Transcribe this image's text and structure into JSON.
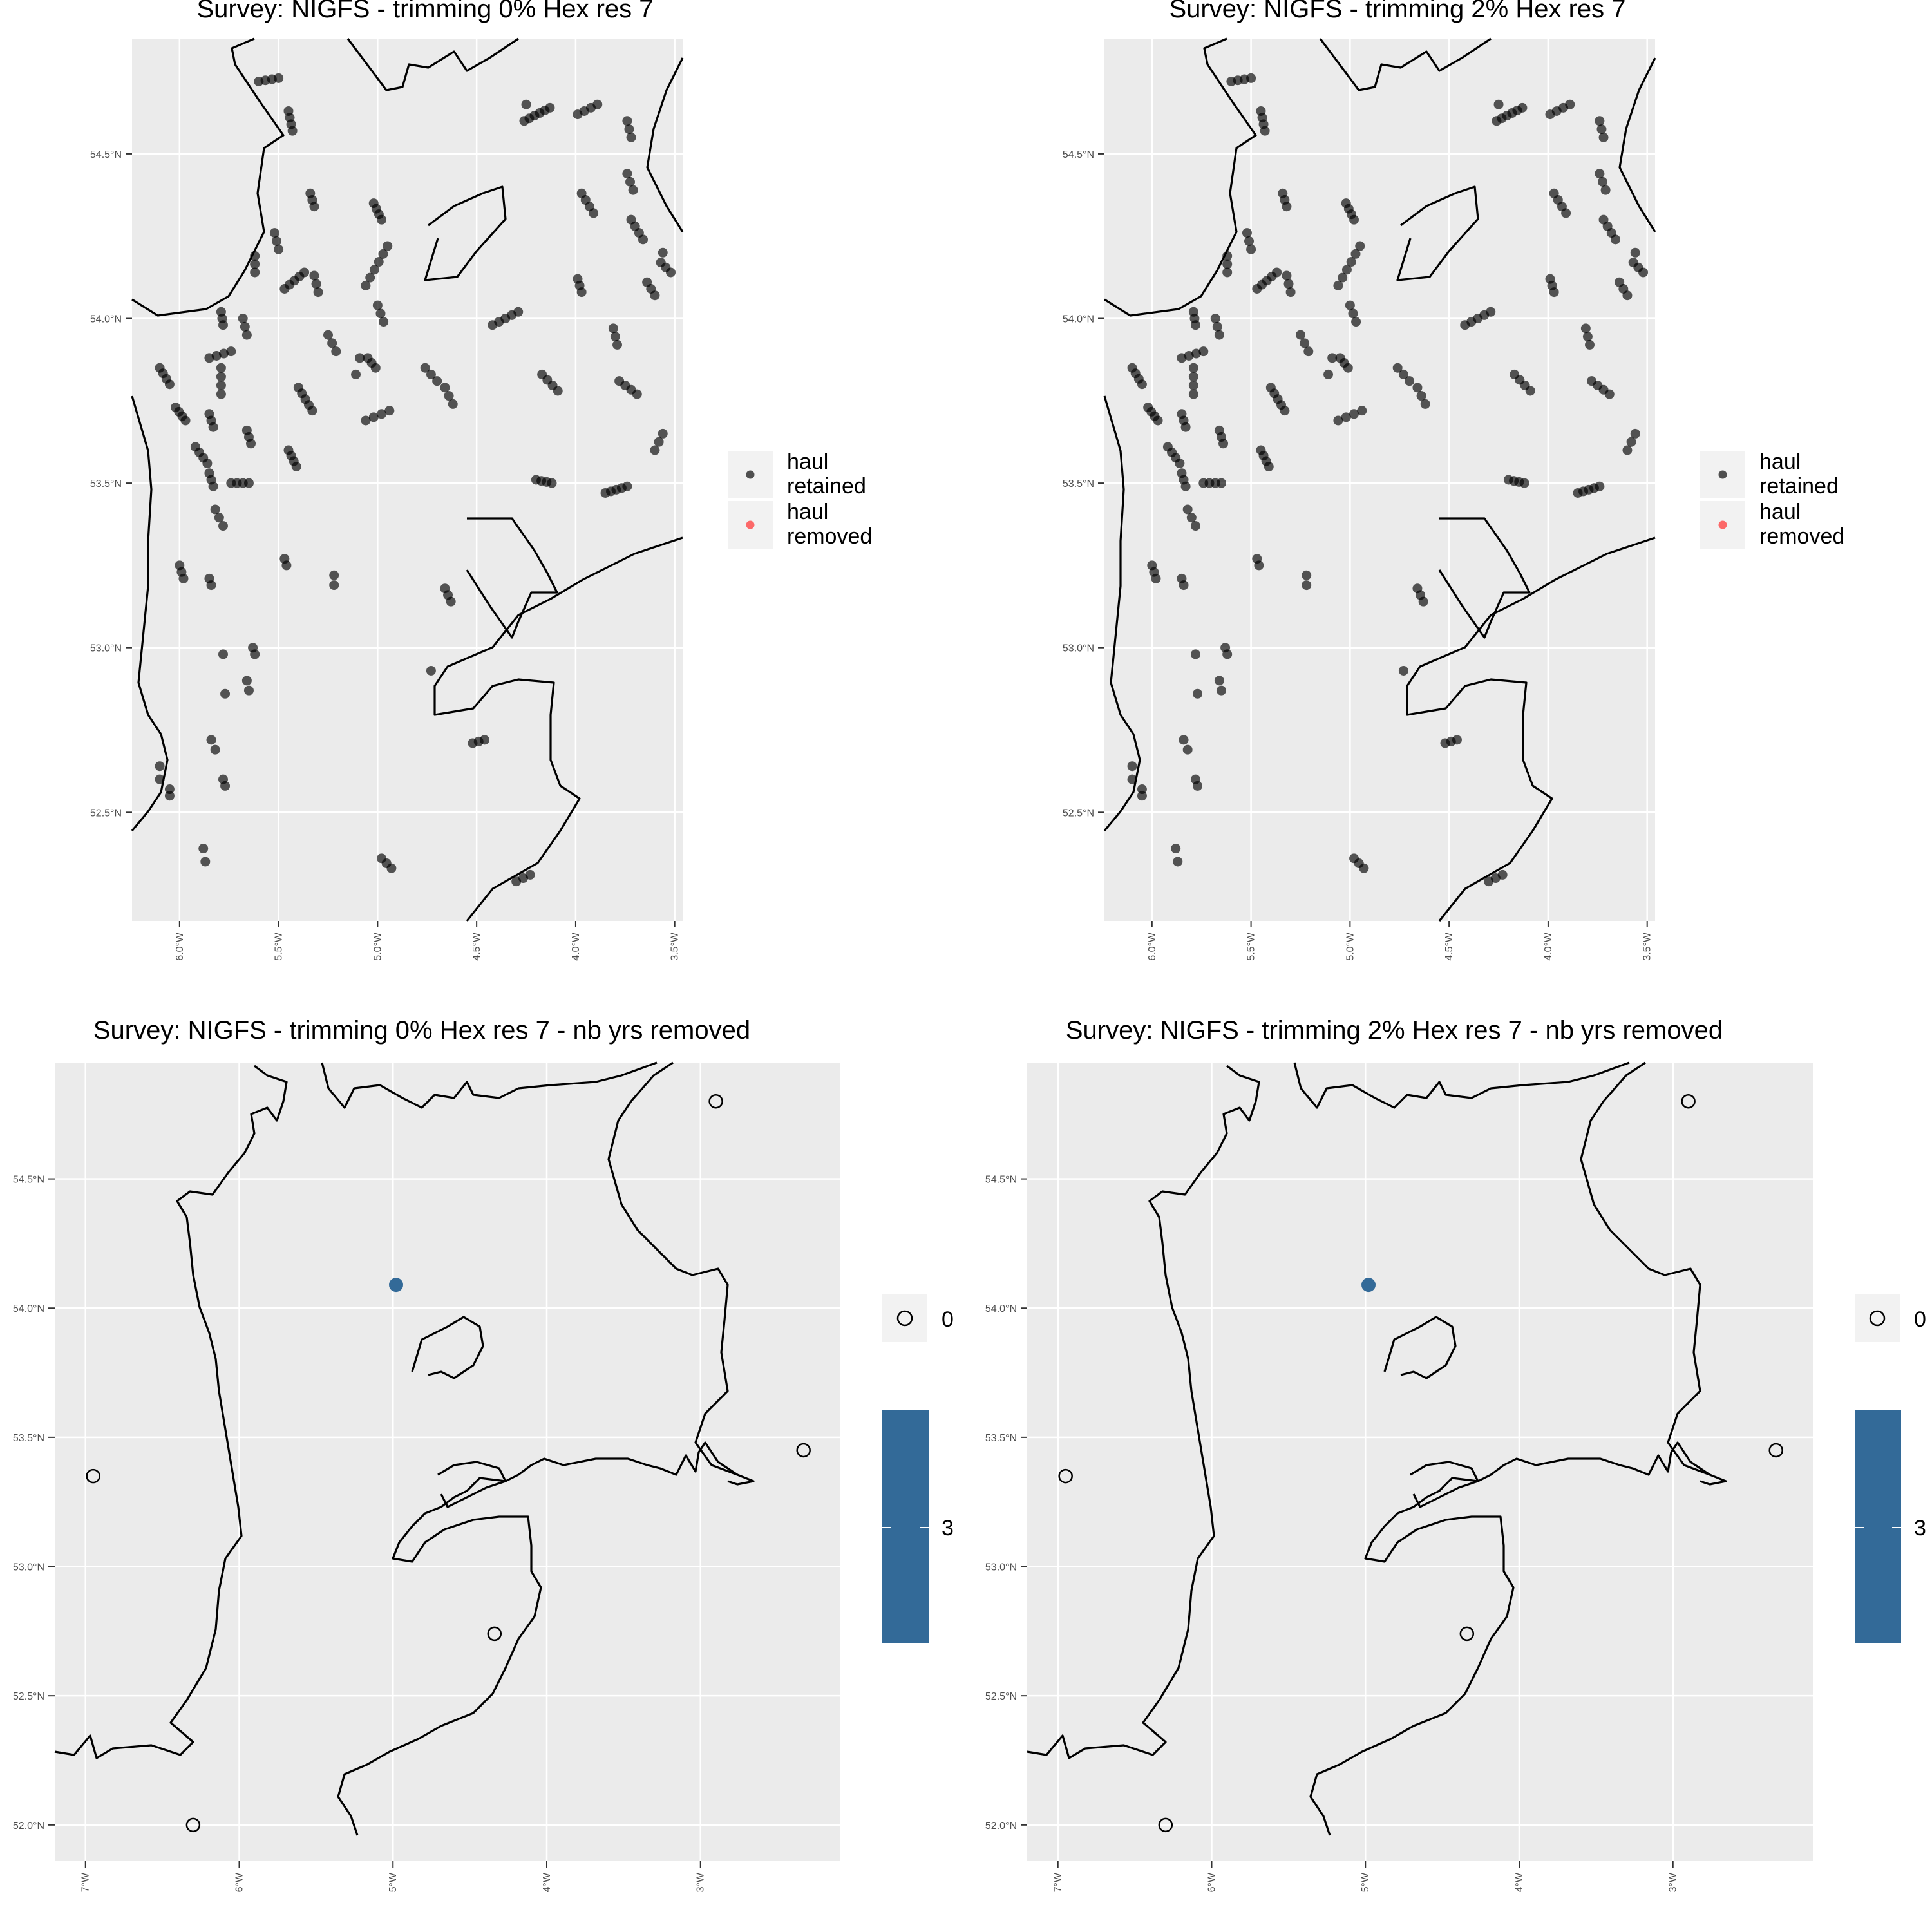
{
  "panels": [
    {
      "title": "Survey: NIGFS - trimming 0% Hex res 7",
      "kind": "hauls",
      "lon_range": [
        -6.24,
        -3.46
      ],
      "lat_range": [
        52.17,
        54.85
      ],
      "y_ticks": [
        {
          "value": 52.5,
          "label": "52.5°N"
        },
        {
          "value": 53.0,
          "label": "53.0°N"
        },
        {
          "value": 53.5,
          "label": "53.5°N"
        },
        {
          "value": 54.0,
          "label": "54.0°N"
        },
        {
          "value": 54.5,
          "label": "54.5°N"
        }
      ],
      "x_ticks": [
        {
          "value": -6.0,
          "label": "6.0°W"
        },
        {
          "value": -5.5,
          "label": "5.5°W"
        },
        {
          "value": -5.0,
          "label": "5.0°W"
        },
        {
          "value": -4.5,
          "label": "4.5°W"
        },
        {
          "value": -4.0,
          "label": "4.0°W"
        },
        {
          "value": -3.5,
          "label": "3.5°W"
        }
      ],
      "legend": [
        {
          "label_line1": "haul",
          "label_line2": "retained",
          "color": "#1a1a1a"
        },
        {
          "label_line1": "haul",
          "label_line2": "removed",
          "color": "#ff3b3b"
        }
      ]
    },
    {
      "title": "Survey: NIGFS - trimming 2% Hex res 7",
      "kind": "hauls",
      "lon_range": [
        -6.24,
        -3.46
      ],
      "lat_range": [
        52.17,
        54.85
      ],
      "y_ticks": [
        {
          "value": 52.5,
          "label": "52.5°N"
        },
        {
          "value": 53.0,
          "label": "53.0°N"
        },
        {
          "value": 53.5,
          "label": "53.5°N"
        },
        {
          "value": 54.0,
          "label": "54.0°N"
        },
        {
          "value": 54.5,
          "label": "54.5°N"
        }
      ],
      "x_ticks": [
        {
          "value": -6.0,
          "label": "6.0°W"
        },
        {
          "value": -5.5,
          "label": "5.5°W"
        },
        {
          "value": -5.0,
          "label": "5.0°W"
        },
        {
          "value": -4.5,
          "label": "4.5°W"
        },
        {
          "value": -4.0,
          "label": "4.0°W"
        },
        {
          "value": -3.5,
          "label": "3.5°W"
        }
      ],
      "legend": [
        {
          "label_line1": "haul",
          "label_line2": "retained",
          "color": "#1a1a1a"
        },
        {
          "label_line1": "haul",
          "label_line2": "removed",
          "color": "#ff3b3b"
        }
      ]
    },
    {
      "title": "Survey: NIGFS - trimming 0% Hex res 7 - nb yrs removed",
      "kind": "hex",
      "lon_range": [
        -7.2,
        -2.09
      ],
      "lat_range": [
        51.86,
        54.95
      ],
      "y_ticks": [
        {
          "value": 52.0,
          "label": "52.0°N"
        },
        {
          "value": 52.5,
          "label": "52.5°N"
        },
        {
          "value": 53.0,
          "label": "53.0°N"
        },
        {
          "value": 53.5,
          "label": "53.5°N"
        },
        {
          "value": 54.0,
          "label": "54.0°N"
        },
        {
          "value": 54.5,
          "label": "54.5°N"
        }
      ],
      "x_ticks": [
        {
          "value": -7,
          "label": "7°W"
        },
        {
          "value": -6,
          "label": "6°W"
        },
        {
          "value": -5,
          "label": "5°W"
        },
        {
          "value": -4,
          "label": "4°W"
        },
        {
          "value": -3,
          "label": "3°W"
        }
      ],
      "open_points": [
        {
          "lon": -2.9,
          "lat": 54.8
        },
        {
          "lon": -2.33,
          "lat": 53.45
        },
        {
          "lon": -6.95,
          "lat": 53.35
        },
        {
          "lon": -4.34,
          "lat": 52.74
        },
        {
          "lon": -6.3,
          "lat": 52.0
        }
      ],
      "filled_points": [
        {
          "lon": -4.98,
          "lat": 54.09,
          "value": 3
        }
      ],
      "legend_zero_label": "0",
      "colorbar_label": "3",
      "fill_color": "#336a98"
    },
    {
      "title": "Survey: NIGFS - trimming 2% Hex res 7 - nb yrs removed",
      "kind": "hex",
      "lon_range": [
        -7.2,
        -2.09
      ],
      "lat_range": [
        51.86,
        54.95
      ],
      "y_ticks": [
        {
          "value": 52.0,
          "label": "52.0°N"
        },
        {
          "value": 52.5,
          "label": "52.5°N"
        },
        {
          "value": 53.0,
          "label": "53.0°N"
        },
        {
          "value": 53.5,
          "label": "53.5°N"
        },
        {
          "value": 54.0,
          "label": "54.0°N"
        },
        {
          "value": 54.5,
          "label": "54.5°N"
        }
      ],
      "x_ticks": [
        {
          "value": -7,
          "label": "7°W"
        },
        {
          "value": -6,
          "label": "6°W"
        },
        {
          "value": -5,
          "label": "5°W"
        },
        {
          "value": -4,
          "label": "4°W"
        },
        {
          "value": -3,
          "label": "3°W"
        }
      ],
      "open_points": [
        {
          "lon": -2.9,
          "lat": 54.8
        },
        {
          "lon": -2.33,
          "lat": 53.45
        },
        {
          "lon": -6.95,
          "lat": 53.35
        },
        {
          "lon": -4.34,
          "lat": 52.74
        },
        {
          "lon": -6.3,
          "lat": 52.0
        }
      ],
      "filled_points": [
        {
          "lon": -4.98,
          "lat": 54.09,
          "value": 3
        }
      ],
      "legend_zero_label": "0",
      "colorbar_label": "3",
      "fill_color": "#336a98"
    }
  ],
  "haul_tracks": [
    [
      -5.6,
      54.72,
      -5.5,
      54.73,
      4
    ],
    [
      -5.45,
      54.63,
      -5.43,
      54.57,
      4
    ],
    [
      -5.34,
      54.38,
      -5.32,
      54.34,
      3
    ],
    [
      -5.02,
      54.35,
      -4.98,
      54.3,
      4
    ],
    [
      -5.52,
      54.26,
      -5.5,
      54.21,
      3
    ],
    [
      -5.62,
      54.19,
      -5.62,
      54.14,
      3
    ],
    [
      -5.47,
      54.09,
      -5.37,
      54.14,
      5
    ],
    [
      -5.32,
      54.13,
      -5.3,
      54.08,
      3
    ],
    [
      -5.06,
      54.1,
      -4.95,
      54.22,
      6
    ],
    [
      -5.79,
      54.02,
      -5.78,
      53.98,
      3
    ],
    [
      -5.68,
      54.0,
      -5.66,
      53.95,
      3
    ],
    [
      -5.0,
      54.04,
      -4.97,
      53.99,
      3
    ],
    [
      -5.85,
      53.88,
      -5.74,
      53.9,
      4
    ],
    [
      -5.25,
      53.95,
      -5.21,
      53.9,
      3
    ],
    [
      -5.05,
      53.88,
      -5.01,
      53.85,
      3
    ],
    [
      -5.11,
      53.83,
      -5.09,
      53.88,
      2
    ],
    [
      -6.1,
      53.85,
      -6.05,
      53.8,
      4
    ],
    [
      -5.79,
      53.85,
      -5.79,
      53.77,
      4
    ],
    [
      -5.4,
      53.79,
      -5.33,
      53.72,
      5
    ],
    [
      -4.76,
      53.85,
      -4.7,
      53.81,
      3
    ],
    [
      -4.66,
      53.79,
      -4.62,
      53.74,
      3
    ],
    [
      -5.06,
      53.69,
      -4.94,
      53.72,
      4
    ],
    [
      -6.02,
      53.73,
      -5.97,
      53.69,
      4
    ],
    [
      -5.85,
      53.71,
      -5.83,
      53.67,
      3
    ],
    [
      -5.66,
      53.66,
      -5.64,
      53.62,
      3
    ],
    [
      -5.92,
      53.61,
      -5.86,
      53.56,
      4
    ],
    [
      -5.45,
      53.6,
      -5.41,
      53.55,
      4
    ],
    [
      -5.85,
      53.53,
      -5.83,
      53.49,
      3
    ],
    [
      -5.74,
      53.5,
      -5.65,
      53.5,
      4
    ],
    [
      -5.82,
      53.42,
      -5.78,
      53.37,
      3
    ],
    [
      -4.42,
      53.98,
      -4.29,
      54.02,
      5
    ],
    [
      -4.2,
      53.51,
      -4.12,
      53.5,
      4
    ],
    [
      -3.85,
      53.47,
      -3.74,
      53.49,
      5
    ],
    [
      -4.26,
      54.6,
      -4.13,
      54.64,
      6
    ],
    [
      -4.25,
      54.65,
      -4.23,
      54.65,
      1
    ],
    [
      -3.99,
      54.62,
      -3.89,
      54.65,
      4
    ],
    [
      -3.74,
      54.6,
      -3.72,
      54.55,
      3
    ],
    [
      -3.74,
      54.44,
      -3.71,
      54.39,
      3
    ],
    [
      -3.97,
      54.38,
      -3.91,
      54.32,
      4
    ],
    [
      -3.72,
      54.3,
      -3.66,
      54.24,
      4
    ],
    [
      -3.57,
      54.17,
      -3.52,
      54.14,
      3
    ],
    [
      -3.56,
      54.2,
      -3.56,
      54.2,
      1
    ],
    [
      -3.64,
      54.11,
      -3.6,
      54.07,
      3
    ],
    [
      -3.99,
      54.12,
      -3.97,
      54.08,
      3
    ],
    [
      -3.81,
      53.97,
      -3.79,
      53.92,
      3
    ],
    [
      -4.17,
      53.83,
      -4.09,
      53.78,
      4
    ],
    [
      -3.78,
      53.81,
      -3.69,
      53.77,
      4
    ],
    [
      -3.6,
      53.6,
      -3.56,
      53.65,
      3
    ],
    [
      -6.0,
      53.25,
      -5.98,
      53.21,
      3
    ],
    [
      -5.85,
      53.21,
      -5.84,
      53.19,
      2
    ],
    [
      -5.47,
      53.27,
      -5.46,
      53.25,
      2
    ],
    [
      -5.22,
      53.22,
      -5.22,
      53.19,
      2
    ],
    [
      -4.66,
      53.18,
      -4.63,
      53.14,
      3
    ],
    [
      -5.63,
      53.0,
      -5.62,
      52.98,
      2
    ],
    [
      -5.78,
      52.98,
      -5.78,
      52.98,
      1
    ],
    [
      -5.77,
      52.86,
      -5.76,
      52.86,
      1
    ],
    [
      -5.66,
      52.9,
      -5.65,
      52.87,
      2
    ],
    [
      -4.73,
      52.93,
      -4.73,
      52.93,
      1
    ],
    [
      -4.52,
      52.71,
      -4.46,
      52.72,
      3
    ],
    [
      -5.84,
      52.72,
      -5.82,
      52.69,
      2
    ],
    [
      -5.78,
      52.6,
      -5.77,
      52.58,
      2
    ],
    [
      -6.1,
      52.64,
      -6.1,
      52.6,
      2
    ],
    [
      -6.05,
      52.57,
      -6.05,
      52.55,
      2
    ],
    [
      -5.88,
      52.39,
      -5.87,
      52.35,
      2
    ],
    [
      -4.98,
      52.36,
      -4.93,
      52.33,
      3
    ],
    [
      -4.3,
      52.29,
      -4.23,
      52.31,
      3
    ]
  ]
}
